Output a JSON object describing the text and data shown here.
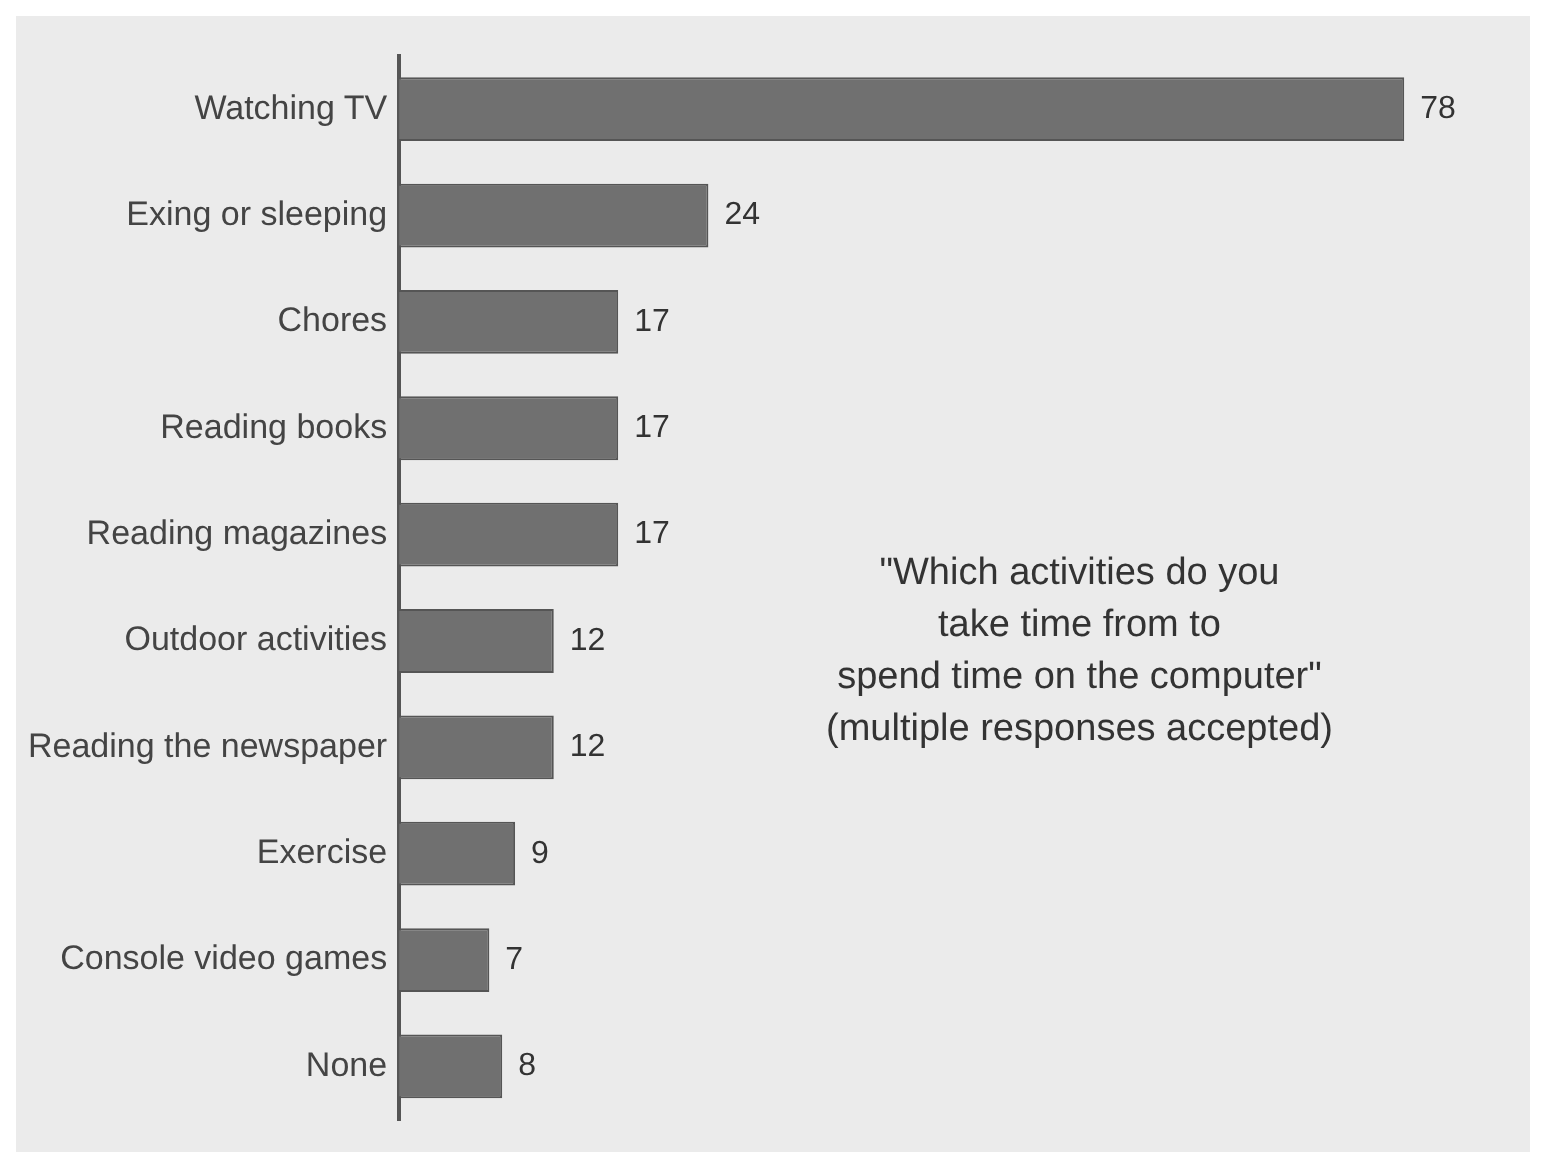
{
  "chart_data": {
    "type": "bar",
    "orientation": "horizontal",
    "categories": [
      "Watching TV",
      "Exing or sleeping",
      "Chores",
      "Reading books",
      "Reading magazines",
      "Outdoor activities",
      "Reading the newspaper",
      "Exercise",
      "Console video games",
      "None"
    ],
    "values": [
      78,
      24,
      17,
      17,
      17,
      12,
      12,
      9,
      7,
      8
    ],
    "color": "#707070",
    "data_labels": true,
    "grid": false,
    "legend": false,
    "tick_labels": "y",
    "annotations": [
      "\"Which activities do you\ntake time from to\nspend time on the computer\"\n(multiple responses accepted)"
    ]
  }
}
